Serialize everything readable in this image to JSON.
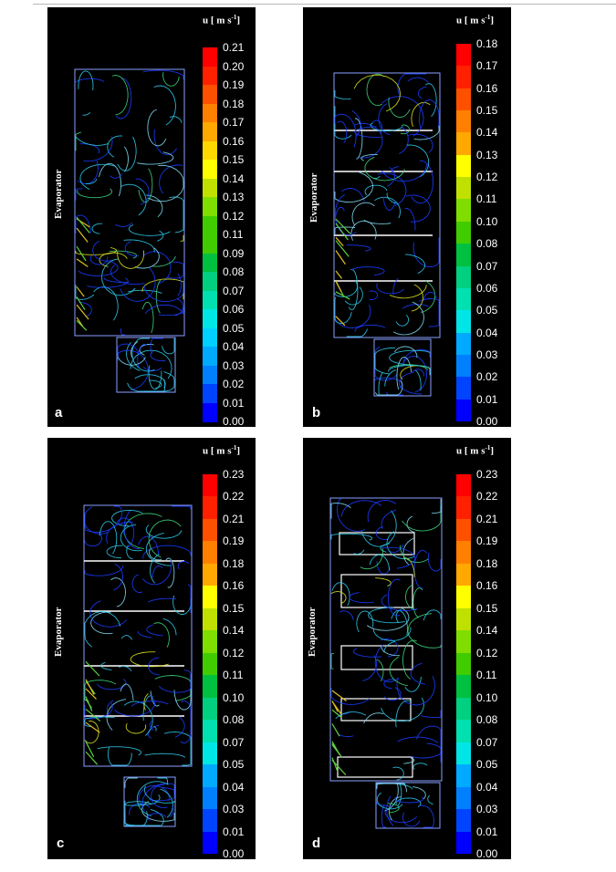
{
  "colorbar_colors": [
    "#0000ff",
    "#0044ff",
    "#0080ff",
    "#00aaff",
    "#00d0ff",
    "#00e6e6",
    "#00e0b0",
    "#00d080",
    "#00c040",
    "#40cc00",
    "#80dd00",
    "#c0e000",
    "#ffff00",
    "#ffd800",
    "#ffa800",
    "#ff8000",
    "#ff5000",
    "#ff2000",
    "#ff0000"
  ],
  "panels": [
    {
      "label": "a",
      "evaporator_label": "Evaporator",
      "unit_label": "u [ m s",
      "unit_exp": "-1",
      "unit_close": "]",
      "scale_ticks": [
        "0.21",
        "0.20",
        "0.19",
        "0.18",
        "0.17",
        "0.16",
        "0.15",
        "0.14",
        "0.13",
        "0.12",
        "0.11",
        "0.09",
        "0.08",
        "0.07",
        "0.06",
        "0.05",
        "0.04",
        "0.03",
        "0.02",
        "0.01",
        "0.00"
      ]
    },
    {
      "label": "b",
      "evaporator_label": "Evaporator",
      "unit_label": "u [ m s",
      "unit_exp": "-1",
      "unit_close": "]",
      "scale_ticks": [
        "0.18",
        "0.17",
        "0.16",
        "0.15",
        "0.14",
        "0.13",
        "0.12",
        "0.11",
        "0.10",
        "0.08",
        "0.07",
        "0.06",
        "0.05",
        "0.04",
        "0.03",
        "0.02",
        "0.01",
        "0.00"
      ]
    },
    {
      "label": "c",
      "evaporator_label": "Evaporator",
      "unit_label": "u [ m s",
      "unit_exp": "-1",
      "unit_close": "]",
      "scale_ticks": [
        "0.23",
        "0.22",
        "0.21",
        "0.19",
        "0.18",
        "0.16",
        "0.15",
        "0.14",
        "0.12",
        "0.11",
        "0.10",
        "0.08",
        "0.07",
        "0.05",
        "0.04",
        "0.03",
        "0.01",
        "0.00"
      ]
    },
    {
      "label": "d",
      "evaporator_label": "Evaporator",
      "unit_label": "u [ m s",
      "unit_exp": "-1",
      "unit_close": "]",
      "scale_ticks": [
        "0.23",
        "0.22",
        "0.21",
        "0.19",
        "0.18",
        "0.16",
        "0.15",
        "0.14",
        "0.12",
        "0.11",
        "0.10",
        "0.08",
        "0.07",
        "0.05",
        "0.04",
        "0.03",
        "0.01",
        "0.00"
      ]
    }
  ]
}
